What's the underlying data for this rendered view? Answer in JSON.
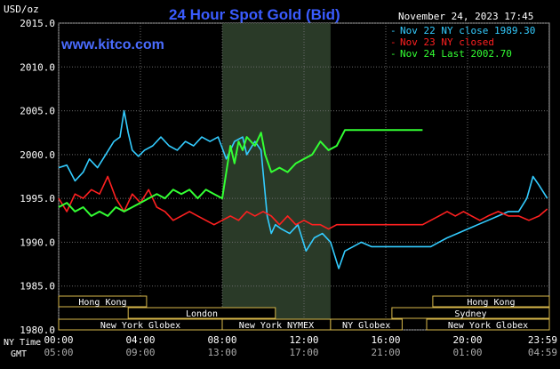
{
  "chart_data": {
    "type": "line",
    "title": "24 Hour Spot Gold (Bid)",
    "website": "www.kitco.com",
    "ylabel": "USD/oz",
    "date_text": "November 24, 2023 17:45",
    "ylim": [
      1980.0,
      2015.0
    ],
    "yticks": [
      "2015.0",
      "2010.0",
      "2005.0",
      "2000.0",
      "1995.0",
      "1990.0",
      "1985.0",
      "1980.0"
    ],
    "ytick_values": [
      2015,
      2010,
      2005,
      2000,
      1995,
      1990,
      1985,
      1980
    ],
    "xlim": [
      0,
      24
    ],
    "time_row_labels": {
      "ny": "NY Time",
      "gmt": "GMT"
    },
    "ny_ticks": [
      "00:00",
      "04:00",
      "08:00",
      "12:00",
      "16:00",
      "20:00",
      "23:59"
    ],
    "gmt_ticks": [
      "05:00",
      "09:00",
      "13:00",
      "17:00",
      "21:00",
      "01:00",
      "04:59"
    ],
    "tick_hours": [
      0,
      4,
      8,
      12,
      16,
      20,
      23.98
    ],
    "shaded_session_hours": [
      8,
      13.3
    ],
    "legend": [
      {
        "label": "Nov 22 NY close 1989.30",
        "color": "#33ccff"
      },
      {
        "label": "Nov 23 NY closed",
        "color": "#ff2020"
      },
      {
        "label": "Nov 24 Last 2002.70",
        "color": "#33ff33"
      }
    ],
    "sessions": [
      {
        "name": "Hong Kong",
        "row": 0,
        "start": 0,
        "end": 4.3
      },
      {
        "name": "Hong Kong",
        "row": 0,
        "start": 18.3,
        "end": 24
      },
      {
        "name": "London",
        "row": 1,
        "start": 3.4,
        "end": 10.6
      },
      {
        "name": "Sydney",
        "row": 1,
        "start": 16.3,
        "end": 24
      },
      {
        "name": "New York Globex",
        "row": 2,
        "start": 0,
        "end": 8
      },
      {
        "name": "New York NYMEX",
        "row": 2,
        "start": 8,
        "end": 13.3
      },
      {
        "name": "NY Globex",
        "row": 2,
        "start": 13.3,
        "end": 16.8
      },
      {
        "name": "New York Globex",
        "row": 2,
        "start": 18,
        "end": 24
      }
    ],
    "series": [
      {
        "name": "Nov 22 NY close 1989.30",
        "color": "#33ccff",
        "x": [
          0,
          0.4,
          0.8,
          1.2,
          1.5,
          1.9,
          2.3,
          2.7,
          3.0,
          3.2,
          3.4,
          3.6,
          3.9,
          4.2,
          4.6,
          5.0,
          5.4,
          5.8,
          6.2,
          6.6,
          7.0,
          7.4,
          7.8,
          8.2,
          8.6,
          9.0,
          9.2,
          9.6,
          9.9,
          10.2,
          10.4,
          10.6,
          10.9,
          11.3,
          11.7,
          12.1,
          12.5,
          12.9,
          13.3,
          13.7,
          14.0,
          14.4,
          14.8,
          15.3,
          16.0,
          17.0,
          17.6,
          18.2,
          18.6,
          19.0,
          19.5,
          20.0,
          20.5,
          21.0,
          21.5,
          22.0,
          22.5,
          22.9,
          23.2,
          23.5,
          23.9
        ],
        "y": [
          1998.5,
          1998.8,
          1997.0,
          1998.0,
          1999.5,
          1998.5,
          2000.0,
          2001.5,
          2002.0,
          2005.0,
          2002.5,
          2000.5,
          1999.8,
          2000.5,
          2001.0,
          2002.0,
          2001.0,
          2000.5,
          2001.5,
          2001.0,
          2002.0,
          2001.5,
          2002.0,
          1999.5,
          2001.5,
          2002.0,
          2000.0,
          2001.5,
          2000.5,
          1993.0,
          1991.0,
          1992.0,
          1991.5,
          1991.0,
          1992.0,
          1989.0,
          1990.5,
          1991.0,
          1990.0,
          1987.0,
          1989.0,
          1989.5,
          1990.0,
          1989.5,
          1989.5,
          1989.5,
          1989.5,
          1989.5,
          1990.0,
          1990.5,
          1991.0,
          1991.5,
          1992.0,
          1992.5,
          1993.0,
          1993.5,
          1993.5,
          1995.0,
          1997.5,
          1996.5,
          1995.0
        ]
      },
      {
        "name": "Nov 23 NY closed",
        "color": "#ff2020",
        "x": [
          0,
          0.4,
          0.8,
          1.2,
          1.6,
          2.0,
          2.4,
          2.8,
          3.2,
          3.6,
          4.0,
          4.4,
          4.8,
          5.2,
          5.6,
          6.0,
          6.4,
          6.8,
          7.2,
          7.6,
          8.0,
          8.4,
          8.8,
          9.2,
          9.6,
          10.0,
          10.4,
          10.8,
          11.2,
          11.6,
          12.0,
          12.4,
          12.8,
          13.2,
          13.6,
          14.0,
          14.4,
          15.0,
          16.0,
          17.0,
          17.8,
          18.2,
          18.6,
          19.0,
          19.4,
          19.8,
          20.2,
          20.6,
          21.0,
          21.5,
          22.0,
          22.5,
          23.0,
          23.5,
          23.9
        ],
        "y": [
          1995.0,
          1993.5,
          1995.5,
          1995.0,
          1996.0,
          1995.5,
          1997.5,
          1995.0,
          1993.5,
          1995.5,
          1994.5,
          1996.0,
          1994.0,
          1993.5,
          1992.5,
          1993.0,
          1993.5,
          1993.0,
          1992.5,
          1992.0,
          1992.5,
          1993.0,
          1992.5,
          1993.5,
          1993.0,
          1993.5,
          1993.0,
          1992.0,
          1993.0,
          1992.0,
          1992.5,
          1992.0,
          1992.0,
          1991.5,
          1992.0,
          1992.0,
          1992.0,
          1992.0,
          1992.0,
          1992.0,
          1992.0,
          1992.5,
          1993.0,
          1993.5,
          1993.0,
          1993.5,
          1993.0,
          1992.5,
          1993.0,
          1993.5,
          1993.0,
          1993.0,
          1992.5,
          1993.0,
          1993.8
        ]
      },
      {
        "name": "Nov 24 Last 2002.70",
        "color": "#33ff33",
        "x": [
          0,
          0.4,
          0.8,
          1.2,
          1.6,
          2.0,
          2.4,
          2.8,
          3.2,
          3.6,
          4.0,
          4.4,
          4.8,
          5.2,
          5.6,
          6.0,
          6.4,
          6.8,
          7.2,
          7.6,
          8.0,
          8.4,
          8.6,
          8.8,
          9.0,
          9.2,
          9.6,
          9.9,
          10.1,
          10.4,
          10.8,
          11.2,
          11.6,
          12.0,
          12.4,
          12.8,
          13.2,
          13.6,
          14.0,
          14.5,
          15.0,
          16.0,
          17.0,
          17.8
        ],
        "y": [
          1994.0,
          1994.5,
          1993.5,
          1994.0,
          1993.0,
          1993.5,
          1993.0,
          1994.0,
          1993.5,
          1994.0,
          1994.5,
          1995.0,
          1995.5,
          1995.0,
          1996.0,
          1995.5,
          1996.0,
          1995.0,
          1996.0,
          1995.5,
          1995.0,
          2001.0,
          1999.0,
          2001.5,
          2000.5,
          2002.0,
          2001.0,
          2002.5,
          2000.0,
          1998.0,
          1998.5,
          1998.0,
          1999.0,
          1999.5,
          2000.0,
          2001.5,
          2000.5,
          2001.0,
          2002.8,
          2002.8,
          2002.8,
          2002.8,
          2002.8,
          2002.8
        ]
      }
    ]
  }
}
